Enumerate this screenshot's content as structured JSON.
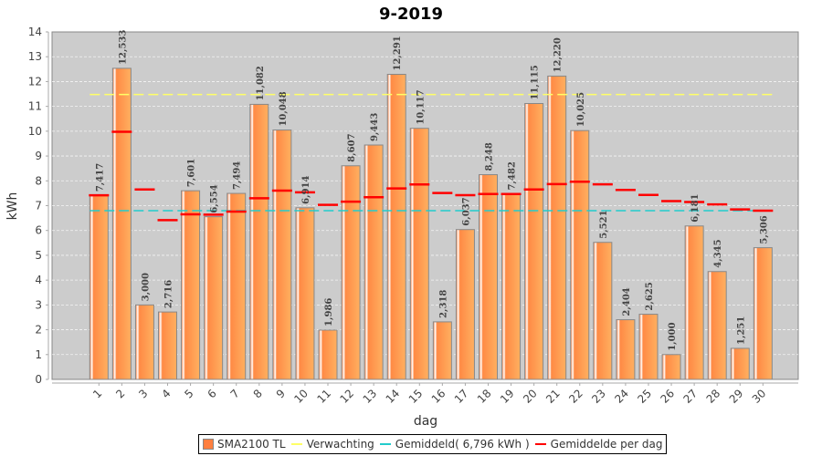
{
  "chart_data": {
    "type": "bar",
    "title": "9-2019",
    "xlabel": "dag",
    "ylabel": "kWh",
    "ylim": [
      0,
      14
    ],
    "yticks": [
      0,
      1,
      2,
      3,
      4,
      5,
      6,
      7,
      8,
      9,
      10,
      11,
      12,
      13,
      14
    ],
    "grid": true,
    "categories": [
      "1",
      "2",
      "3",
      "4",
      "5",
      "6",
      "7",
      "8",
      "9",
      "10",
      "11",
      "12",
      "13",
      "14",
      "15",
      "16",
      "17",
      "18",
      "19",
      "20",
      "21",
      "22",
      "23",
      "24",
      "25",
      "26",
      "27",
      "28",
      "29",
      "30"
    ],
    "series": [
      {
        "name": "SMA2100 TL",
        "type": "bar",
        "color": "#ff8c42",
        "values": [
          7.417,
          12.533,
          3.0,
          2.716,
          7.601,
          6.554,
          7.494,
          11.082,
          10.048,
          6.914,
          1.986,
          8.607,
          9.443,
          12.291,
          10.117,
          2.318,
          6.037,
          8.248,
          7.482,
          11.115,
          12.22,
          10.025,
          5.521,
          2.404,
          2.625,
          1.0,
          6.181,
          4.345,
          1.251,
          5.306
        ],
        "labels": [
          "7,417",
          "12,533",
          "3,000",
          "2,716",
          "7,601",
          "6,554",
          "7,494",
          "11,082",
          "10,048",
          "6,914",
          "1,986",
          "8,607",
          "9,443",
          "12,291",
          "10,117",
          "2,318",
          "6,037",
          "8,248",
          "7,482",
          "11,115",
          "12,220",
          "10,025",
          "5,521",
          "2,404",
          "2,625",
          "1,000",
          "6,181",
          "4,345",
          "1,251",
          "5,306"
        ]
      },
      {
        "name": "Verwachting",
        "type": "line",
        "color": "#ffff66",
        "value": 11.48
      },
      {
        "name": "Gemiddeld( 6,796 kWh )",
        "type": "line",
        "color": "#22cccc",
        "value": 6.796
      },
      {
        "name": "Gemiddelde per dag",
        "type": "step",
        "color": "#ff0000",
        "values": [
          7.417,
          9.975,
          7.65,
          6.417,
          6.653,
          6.637,
          6.759,
          7.3,
          7.605,
          7.536,
          7.032,
          7.163,
          7.339,
          7.693,
          7.854,
          7.508,
          7.421,
          7.467,
          7.468,
          7.651,
          7.868,
          7.966,
          7.86,
          7.633,
          7.433,
          7.186,
          7.149,
          7.049,
          6.85,
          6.796
        ]
      }
    ],
    "legend": {
      "position": "bottom",
      "items": [
        {
          "label": "SMA2100 TL",
          "color": "#ff7f3f",
          "kind": "box"
        },
        {
          "label": "Verwachting",
          "color": "#ffff66",
          "kind": "line"
        },
        {
          "label": "Gemiddeld( 6,796 kWh )",
          "color": "#22cccc",
          "kind": "line"
        },
        {
          "label": "Gemiddelde per dag",
          "color": "#ff0000",
          "kind": "line"
        }
      ]
    }
  }
}
